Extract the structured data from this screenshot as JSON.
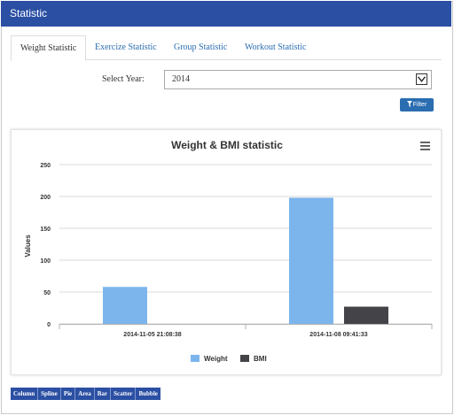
{
  "header": {
    "title": "Statistic"
  },
  "tabs": [
    {
      "label": "Weight Statistic",
      "active": true
    },
    {
      "label": "Exercize Statistic",
      "active": false
    },
    {
      "label": "Group Statistic",
      "active": false
    },
    {
      "label": "Workout Statistic",
      "active": false
    }
  ],
  "filter": {
    "year_label": "Select Year:",
    "year_value": "2014",
    "button_label": "Filter"
  },
  "chart_data": {
    "type": "bar",
    "title": "Weight & BMI statistic",
    "ylabel": "Values",
    "xlabel": "",
    "categories": [
      "2014-11-05 21:08:38",
      "2014-11-08 09:41:33"
    ],
    "series": [
      {
        "name": "Weight",
        "color": "#7cb5ec",
        "values": [
          58,
          198
        ]
      },
      {
        "name": "BMI",
        "color": "#434348",
        "values": [
          0,
          27
        ]
      }
    ],
    "ylim": [
      0,
      250
    ],
    "yticks": [
      0,
      50,
      100,
      150,
      200,
      250
    ],
    "grid": true,
    "legend": "bottom-center",
    "menu_icon": "hamburger-icon"
  },
  "chart_types": [
    "Column",
    "Spline",
    "Pie",
    "Area",
    "Bar",
    "Scatter",
    "Bubble"
  ]
}
